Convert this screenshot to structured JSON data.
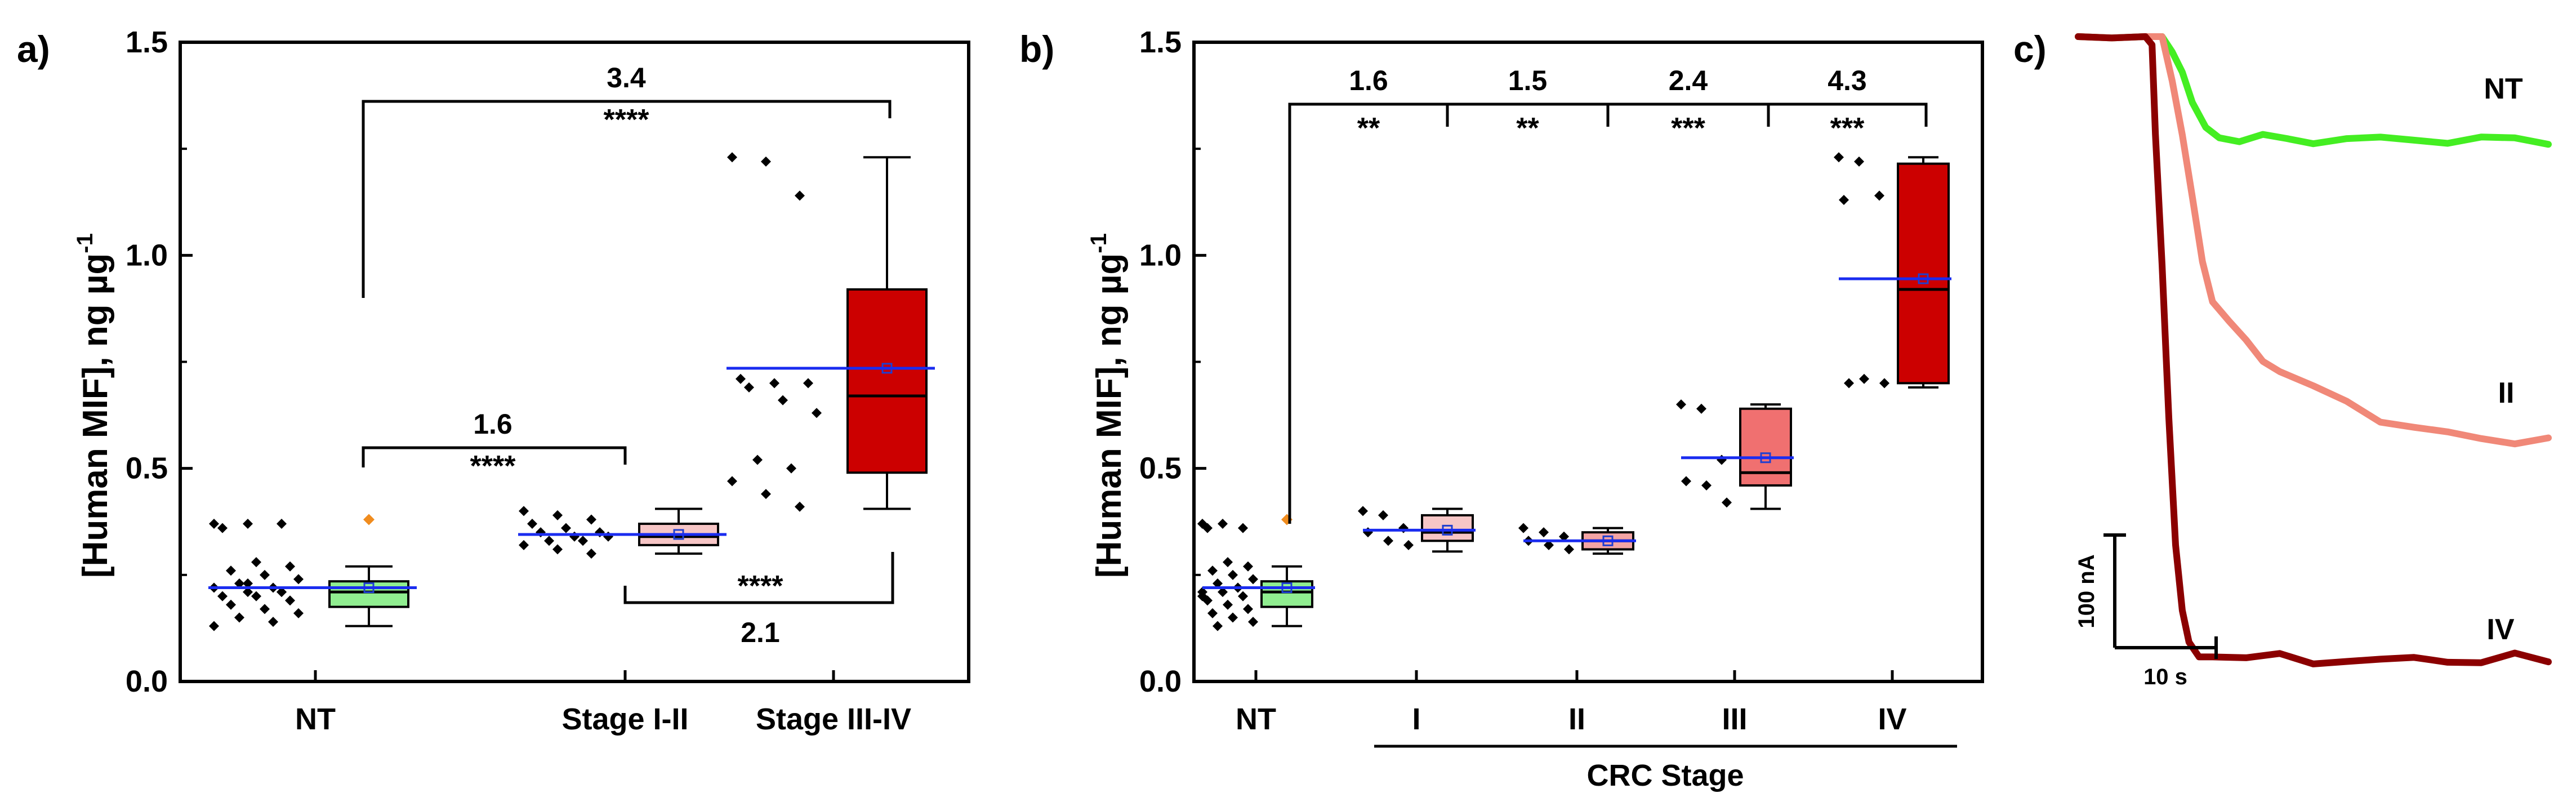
{
  "chart_data": [
    {
      "panel": "a)",
      "type": "box",
      "ylabel_main": "[Human MIF], ng µg",
      "ylabel_sup": "-1",
      "ylim": [
        0,
        1.5
      ],
      "yticks": [
        "0.0",
        "0.5",
        "1.0",
        "1.5"
      ],
      "ytick_values": [
        0,
        0.5,
        1.0,
        1.5
      ],
      "categories": [
        "NT",
        "Stage I-II",
        "Stage III-IV"
      ],
      "groups": [
        {
          "name": "NT",
          "color": "#90ee90",
          "whisker_low": 0.13,
          "q1": 0.175,
          "median": 0.21,
          "q3": 0.235,
          "whisker_high": 0.27,
          "mean": 0.22,
          "outliers": [
            0.38
          ],
          "points": [
            0.37,
            0.37,
            0.37,
            0.36,
            0.28,
            0.27,
            0.26,
            0.25,
            0.24,
            0.23,
            0.22,
            0.22,
            0.21,
            0.21,
            0.2,
            0.2,
            0.19,
            0.18,
            0.17,
            0.16,
            0.15,
            0.14,
            0.13,
            0.23,
            0.21
          ]
        },
        {
          "name": "Stage I-II",
          "color": "#f7c6c6",
          "whisker_low": 0.3,
          "q1": 0.32,
          "median": 0.34,
          "q3": 0.37,
          "whisker_high": 0.405,
          "mean": 0.345,
          "outliers": [],
          "points": [
            0.4,
            0.39,
            0.38,
            0.37,
            0.36,
            0.35,
            0.35,
            0.34,
            0.34,
            0.33,
            0.33,
            0.32,
            0.31,
            0.3
          ]
        },
        {
          "name": "Stage III-IV",
          "color": "#cc0000",
          "whisker_low": 0.405,
          "q1": 0.49,
          "median": 0.67,
          "q3": 0.92,
          "whisker_high": 1.23,
          "mean": 0.735,
          "outliers": [],
          "points": [
            1.23,
            1.22,
            1.14,
            0.71,
            0.7,
            0.7,
            0.69,
            0.66,
            0.63,
            0.52,
            0.5,
            0.47,
            0.44,
            0.41
          ]
        }
      ],
      "comparisons": [
        {
          "from": "NT",
          "to": "Stage III-IV",
          "fold": "3.4",
          "significance": "****"
        },
        {
          "from": "NT",
          "to": "Stage I-II",
          "fold": "1.6",
          "significance": "****"
        },
        {
          "from": "Stage I-II",
          "to": "Stage III-IV",
          "fold": "2.1",
          "significance": "****"
        }
      ]
    },
    {
      "panel": "b)",
      "type": "box",
      "ylabel_main": "[Human MIF], ng µg",
      "ylabel_sup": "-1",
      "xlabel": "CRC Stage",
      "ylim": [
        0,
        1.5
      ],
      "yticks": [
        "0.0",
        "0.5",
        "1.0",
        "1.5"
      ],
      "ytick_values": [
        0,
        0.5,
        1.0,
        1.5
      ],
      "categories": [
        "NT",
        "I",
        "II",
        "III",
        "IV"
      ],
      "groups": [
        {
          "name": "NT",
          "color": "#90ee90",
          "whisker_low": 0.13,
          "q1": 0.175,
          "median": 0.21,
          "q3": 0.235,
          "whisker_high": 0.27,
          "mean": 0.22,
          "outliers": [
            0.38
          ],
          "points": [
            0.37,
            0.37,
            0.36,
            0.36,
            0.28,
            0.27,
            0.26,
            0.25,
            0.24,
            0.23,
            0.22,
            0.21,
            0.21,
            0.2,
            0.19,
            0.18,
            0.17,
            0.16,
            0.15,
            0.14,
            0.13,
            0.22,
            0.2
          ]
        },
        {
          "name": "I",
          "color": "#f7c6c6",
          "whisker_low": 0.305,
          "q1": 0.33,
          "median": 0.35,
          "q3": 0.39,
          "whisker_high": 0.405,
          "mean": 0.355,
          "outliers": [],
          "points": [
            0.4,
            0.39,
            0.36,
            0.35,
            0.33,
            0.32
          ]
        },
        {
          "name": "II",
          "color": "#f4a4a4",
          "whisker_low": 0.3,
          "q1": 0.31,
          "median": 0.33,
          "q3": 0.35,
          "whisker_high": 0.36,
          "mean": 0.33,
          "outliers": [],
          "points": [
            0.36,
            0.35,
            0.34,
            0.33,
            0.32,
            0.31
          ]
        },
        {
          "name": "III",
          "color": "#f07070",
          "whisker_low": 0.405,
          "q1": 0.46,
          "median": 0.49,
          "q3": 0.64,
          "whisker_high": 0.65,
          "mean": 0.525,
          "outliers": [],
          "points": [
            0.65,
            0.64,
            0.52,
            0.47,
            0.46,
            0.42
          ]
        },
        {
          "name": "IV",
          "color": "#cc0000",
          "whisker_low": 0.69,
          "q1": 0.7,
          "median": 0.92,
          "q3": 1.215,
          "whisker_high": 1.23,
          "mean": 0.945,
          "outliers": [],
          "points": [
            1.23,
            1.22,
            1.14,
            1.13,
            0.71,
            0.7,
            0.7
          ]
        }
      ],
      "comparisons": [
        {
          "from": "NT",
          "to": "I",
          "fold": "1.6",
          "significance": "**"
        },
        {
          "from": "I",
          "to": "II",
          "fold": "1.5",
          "significance": "**"
        },
        {
          "from": "II",
          "to": "III",
          "fold": "2.4",
          "significance": "***"
        },
        {
          "from": "III",
          "to": "IV",
          "fold": "4.3",
          "significance": "***"
        }
      ]
    },
    {
      "panel": "c)",
      "type": "line",
      "scale_bar_y": "100 nA",
      "scale_bar_x": "10 s",
      "series": [
        {
          "name": "NT",
          "color": "#44ee22",
          "points": [
            [
              0,
              0
            ],
            [
              10,
              -0.05
            ],
            [
              20,
              0
            ],
            [
              25,
              0
            ],
            [
              28,
              -0.5
            ],
            [
              31,
              -1.2
            ],
            [
              34,
              -2.5
            ],
            [
              38,
              -3.4
            ],
            [
              42,
              -3.6
            ],
            [
              48,
              -3.8
            ],
            [
              55,
              -3.7
            ],
            [
              62,
              -3.75
            ],
            [
              70,
              -3.8
            ],
            [
              80,
              -3.75
            ],
            [
              90,
              -3.8
            ],
            [
              100,
              -3.75
            ],
            [
              110,
              -3.8
            ],
            [
              120,
              -3.75
            ],
            [
              130,
              -3.8
            ],
            [
              140,
              -3.85
            ]
          ]
        },
        {
          "name": "II",
          "color": "#f08878",
          "points": [
            [
              0,
              0
            ],
            [
              10,
              -0.05
            ],
            [
              20,
              0
            ],
            [
              25,
              0
            ],
            [
              28,
              -1.5
            ],
            [
              31,
              -3.6
            ],
            [
              34,
              -6.0
            ],
            [
              37,
              -8.2
            ],
            [
              40,
              -9.6
            ],
            [
              45,
              -10.5
            ],
            [
              50,
              -11.2
            ],
            [
              55,
              -11.8
            ],
            [
              60,
              -12.2
            ],
            [
              70,
              -12.9
            ],
            [
              80,
              -13.4
            ],
            [
              90,
              -14.0
            ],
            [
              100,
              -14.3
            ],
            [
              110,
              -14.6
            ],
            [
              120,
              -14.7
            ],
            [
              130,
              -14.8
            ],
            [
              140,
              -14.75
            ]
          ]
        },
        {
          "name": "IV",
          "color": "#8b0000",
          "points": [
            [
              0,
              0
            ],
            [
              10,
              -0.05
            ],
            [
              20,
              0
            ],
            [
              22,
              -0.3
            ],
            [
              23,
              -3.5
            ],
            [
              25,
              -8.5
            ],
            [
              27,
              -14.0
            ],
            [
              29,
              -18.5
            ],
            [
              31,
              -21.0
            ],
            [
              33,
              -22.3
            ],
            [
              36,
              -22.7
            ],
            [
              40,
              -22.6
            ],
            [
              50,
              -22.8
            ],
            [
              60,
              -22.7
            ],
            [
              70,
              -22.9
            ],
            [
              80,
              -22.8
            ],
            [
              90,
              -22.9
            ],
            [
              100,
              -22.8
            ],
            [
              110,
              -22.8
            ],
            [
              120,
              -22.9
            ],
            [
              130,
              -22.7
            ],
            [
              140,
              -22.9
            ]
          ]
        }
      ]
    }
  ]
}
